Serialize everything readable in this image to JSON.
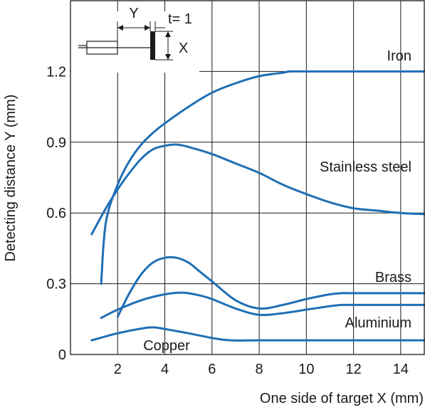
{
  "chart_data": {
    "type": "line",
    "xlabel": "One side of target X (mm)",
    "ylabel": "Detecting distance Y (mm)",
    "xlim": [
      0,
      15
    ],
    "ylim": [
      0,
      1.5
    ],
    "x_ticks": [
      2,
      4,
      6,
      8,
      10,
      12,
      14
    ],
    "y_ticks": [
      0,
      0.3,
      0.6,
      0.9,
      1.2
    ],
    "y_tick_labels": [
      "0",
      "0.3",
      "0.6",
      "0.9",
      "1.2"
    ],
    "grid": true,
    "legend": "none",
    "line_color": "#1f6fb5",
    "series": [
      {
        "name": "Iron",
        "x": [
          1.3,
          1.5,
          2.0,
          2.5,
          3.0,
          3.5,
          4.0,
          5.0,
          6.0,
          7.0,
          8.0,
          9.0,
          9.3,
          10.0,
          12.0,
          14.0,
          15.0
        ],
        "y": [
          0.3,
          0.56,
          0.72,
          0.82,
          0.89,
          0.94,
          0.98,
          1.05,
          1.11,
          1.15,
          1.18,
          1.195,
          1.2,
          1.2,
          1.2,
          1.2,
          1.2
        ]
      },
      {
        "name": "Stainless steel",
        "x": [
          0.9,
          1.5,
          2.0,
          2.5,
          3.0,
          3.5,
          4.0,
          4.5,
          5.0,
          6.0,
          7.0,
          8.0,
          9.0,
          10.0,
          11.0,
          12.0,
          13.0,
          14.0,
          15.0
        ],
        "y": [
          0.51,
          0.62,
          0.7,
          0.77,
          0.83,
          0.87,
          0.885,
          0.89,
          0.88,
          0.85,
          0.81,
          0.77,
          0.72,
          0.68,
          0.645,
          0.62,
          0.61,
          0.6,
          0.595
        ]
      },
      {
        "name": "Brass",
        "x": [
          2.0,
          2.5,
          3.0,
          3.5,
          4.0,
          4.5,
          5.0,
          5.5,
          6.0,
          7.0,
          8.0,
          9.0,
          10.0,
          11.0,
          11.5,
          12.0,
          13.0,
          14.0,
          15.0
        ],
        "y": [
          0.16,
          0.26,
          0.34,
          0.39,
          0.41,
          0.41,
          0.39,
          0.35,
          0.31,
          0.23,
          0.195,
          0.21,
          0.235,
          0.255,
          0.26,
          0.26,
          0.26,
          0.26,
          0.26
        ]
      },
      {
        "name": "Aluminium",
        "x": [
          1.3,
          2.0,
          3.0,
          4.0,
          4.8,
          5.5,
          6.0,
          7.0,
          8.0,
          9.0,
          10.0,
          11.0,
          11.5,
          12.0,
          13.0,
          14.0,
          15.0
        ],
        "y": [
          0.155,
          0.19,
          0.23,
          0.255,
          0.262,
          0.25,
          0.235,
          0.195,
          0.168,
          0.175,
          0.19,
          0.205,
          0.21,
          0.21,
          0.21,
          0.21,
          0.21
        ]
      },
      {
        "name": "Copper",
        "x": [
          0.9,
          2.0,
          3.0,
          3.5,
          4.0,
          5.0,
          6.0,
          6.8,
          8.0,
          10.0,
          12.0,
          14.0,
          15.0
        ],
        "y": [
          0.06,
          0.09,
          0.11,
          0.115,
          0.108,
          0.09,
          0.07,
          0.06,
          0.06,
          0.06,
          0.06,
          0.06,
          0.06
        ]
      }
    ]
  },
  "inset": {
    "y_label": "Y",
    "t_label": "t= 1",
    "x_label": "X"
  }
}
